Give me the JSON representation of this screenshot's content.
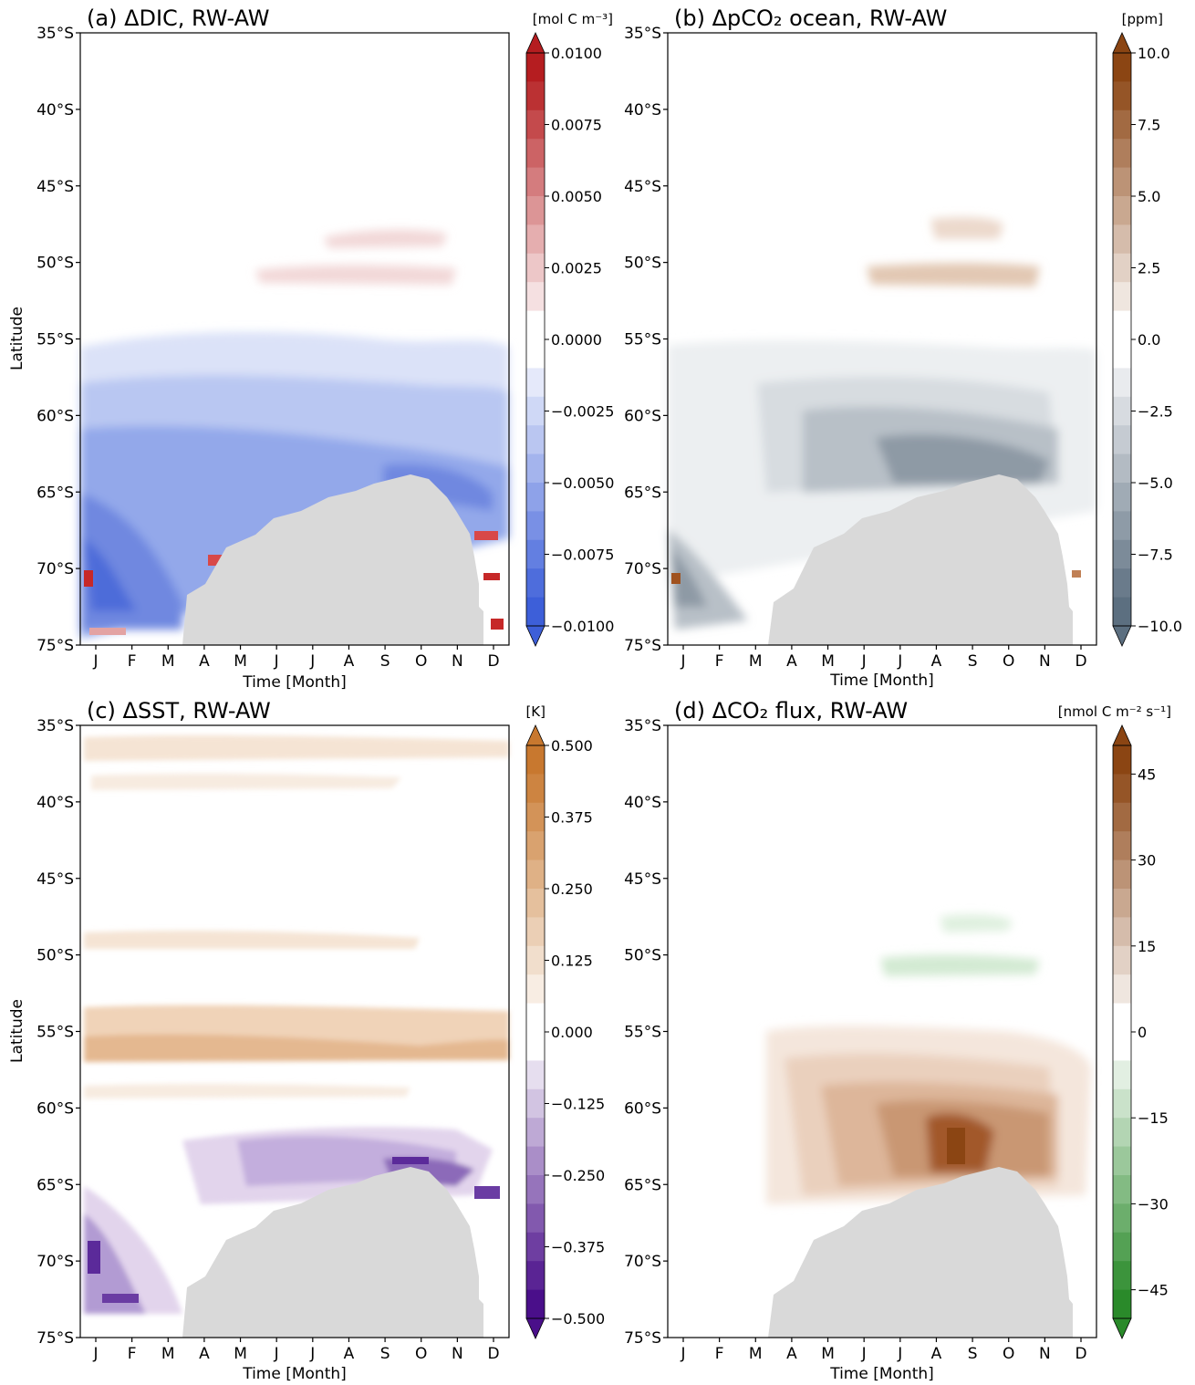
{
  "chart_data": [
    {
      "type": "heatmap",
      "title": "(a) ΔDIC, RW-AW",
      "ylabel": "Latitude",
      "xlabel": "Time [Month]",
      "x_ticks": [
        "J",
        "F",
        "M",
        "A",
        "M",
        "J",
        "J",
        "A",
        "S",
        "O",
        "N",
        "D"
      ],
      "y_ticks": [
        "35°S",
        "40°S",
        "45°S",
        "50°S",
        "55°S",
        "60°S",
        "65°S",
        "70°S",
        "75°S"
      ],
      "colorbar": {
        "units": "[mol C m⁻³]",
        "ticks": [
          "0.0100",
          "0.0075",
          "0.0050",
          "0.0025",
          "0.0000",
          "−0.0025",
          "−0.0050",
          "−0.0075",
          "−0.0100"
        ],
        "range": [
          -0.01,
          0.01
        ],
        "colors": [
          "#3d5fd9",
          "#ffffff",
          "#b51d20"
        ]
      },
      "land_color": "#d9d9d9"
    },
    {
      "type": "heatmap",
      "title": "(b) ΔpCO₂ ocean, RW-AW",
      "ylabel": "",
      "xlabel": "Time [Month]",
      "x_ticks": [
        "J",
        "F",
        "M",
        "A",
        "M",
        "J",
        "J",
        "A",
        "S",
        "O",
        "N",
        "D"
      ],
      "y_ticks": [
        "35°S",
        "40°S",
        "45°S",
        "50°S",
        "55°S",
        "60°S",
        "65°S",
        "70°S",
        "75°S"
      ],
      "colorbar": {
        "units": "[ppm]",
        "ticks": [
          "10.0",
          "7.5",
          "5.0",
          "2.5",
          "0.0",
          "−2.5",
          "−5.0",
          "−7.5",
          "−10.0"
        ],
        "range": [
          -10,
          10
        ],
        "colors": [
          "#5c6f80",
          "#ffffff",
          "#8b4513"
        ]
      },
      "land_color": "#d9d9d9"
    },
    {
      "type": "heatmap",
      "title": "(c) ΔSST, RW-AW",
      "ylabel": "Latitude",
      "xlabel": "Time [Month]",
      "x_ticks": [
        "J",
        "F",
        "M",
        "A",
        "M",
        "J",
        "J",
        "A",
        "S",
        "O",
        "N",
        "D"
      ],
      "y_ticks": [
        "35°S",
        "40°S",
        "45°S",
        "50°S",
        "55°S",
        "60°S",
        "65°S",
        "70°S",
        "75°S"
      ],
      "colorbar": {
        "units": "[K]",
        "ticks": [
          "0.500",
          "0.375",
          "0.250",
          "0.125",
          "0.000",
          "−0.125",
          "−0.250",
          "−0.375",
          "−0.500"
        ],
        "range": [
          -0.5,
          0.5
        ],
        "colors": [
          "#4a0f8a",
          "#ffffff",
          "#c8782f"
        ]
      },
      "land_color": "#d9d9d9"
    },
    {
      "type": "heatmap",
      "title": "(d) ΔCO₂ flux, RW-AW",
      "ylabel": "",
      "xlabel": "Time [Month]",
      "x_ticks": [
        "J",
        "F",
        "M",
        "A",
        "M",
        "J",
        "J",
        "A",
        "S",
        "O",
        "N",
        "D"
      ],
      "y_ticks": [
        "35°S",
        "40°S",
        "45°S",
        "50°S",
        "55°S",
        "60°S",
        "65°S",
        "70°S",
        "75°S"
      ],
      "colorbar": {
        "units": "[nmol C m⁻² s⁻¹]",
        "ticks": [
          "45",
          "30",
          "15",
          "0",
          "−15",
          "−30",
          "−45"
        ],
        "range": [
          -50,
          50
        ],
        "colors": [
          "#2a8a2a",
          "#ffffff",
          "#8b4513"
        ]
      },
      "land_color": "#d9d9d9"
    }
  ]
}
